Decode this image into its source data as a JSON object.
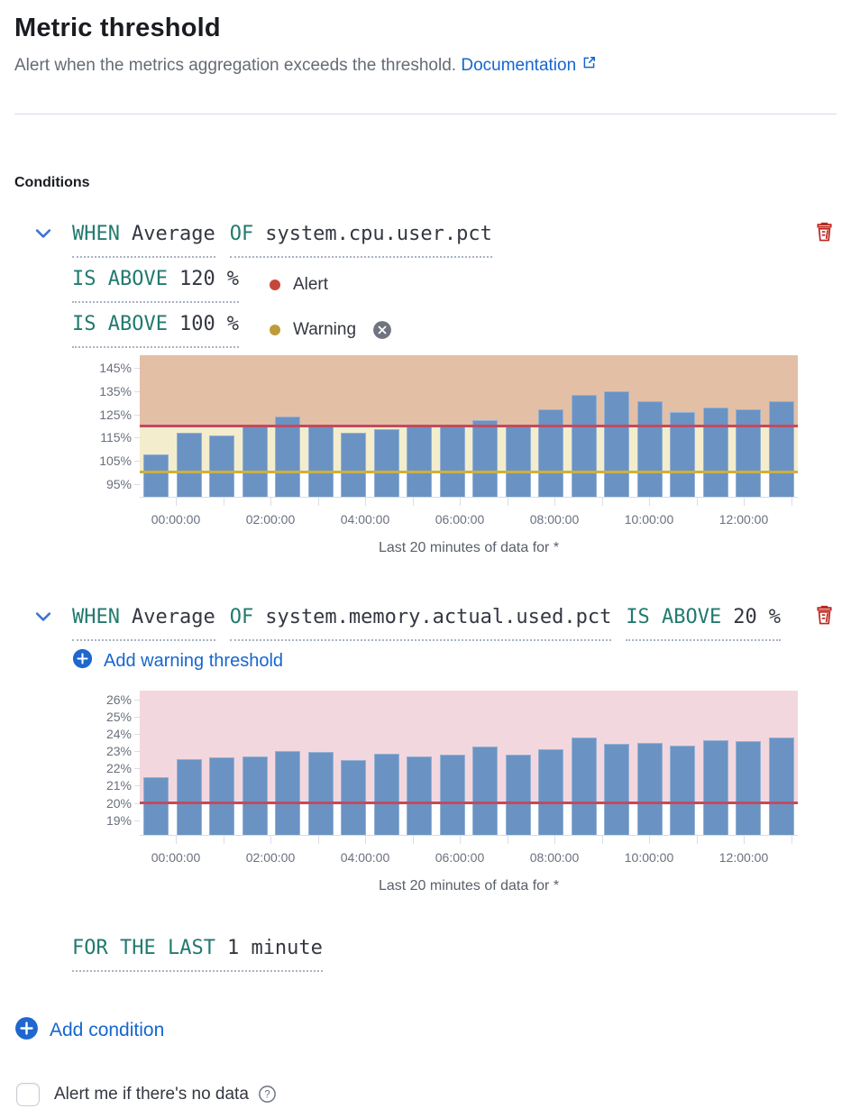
{
  "header": {
    "title": "Metric threshold",
    "subtitle": "Alert when the metrics aggregation exceeds the threshold.",
    "doc_link": "Documentation"
  },
  "conditions": {
    "section_label": "Conditions",
    "condition1": {
      "when_label": "WHEN",
      "aggregation": "Average",
      "of_label": "OF",
      "metric": "system.cpu.user.pct",
      "alert": {
        "op": "IS ABOVE",
        "value": "120",
        "unit": "%",
        "label": "Alert"
      },
      "warning": {
        "op": "IS ABOVE",
        "value": "100",
        "unit": "%",
        "label": "Warning"
      }
    },
    "condition2": {
      "when_label": "WHEN",
      "aggregation": "Average",
      "of_label": "OF",
      "metric": "system.memory.actual.used.pct",
      "alert": {
        "op": "IS ABOVE",
        "value": "20",
        "unit": "%"
      },
      "add_warning_label": "Add warning threshold"
    },
    "for_the_last": {
      "label": "FOR THE LAST",
      "value": "1 minute"
    },
    "add_condition_label": "Add condition"
  },
  "footer": {
    "no_data_label": "Alert me if there's no data"
  },
  "icons": {
    "chevron_down": "⌄",
    "trash": "🗑",
    "plus_in_circle": "＋",
    "cross_in_circle": "✕",
    "external_link": "↗",
    "help": "?"
  },
  "colors": {
    "link_blue": "#1566d0",
    "keyword_teal": "#227a6f",
    "danger_red": "#bd271e",
    "alert_dot": "#c5473c",
    "warning_dot": "#bf9c3b",
    "alert_line": "#c34a5e",
    "warning_line": "#ceb03e",
    "bar_blue": "#6a93c3",
    "alert_zone_tan": "#e3bfa6",
    "warning_zone_cream": "#f3edcd",
    "alert_zone_pink": "#f3d7de"
  },
  "chart_data": [
    {
      "type": "bar",
      "title": "CPU condition preview",
      "xlabel": "Last 20 minutes of data for *",
      "ylabel": "",
      "ylim": [
        89,
        150.5
      ],
      "y_ticks": [
        145,
        135,
        125,
        115,
        105,
        95
      ],
      "y_tick_labels": [
        "145%",
        "135%",
        "125%",
        "115%",
        "105%",
        "95%"
      ],
      "x_tick_labels": [
        "00:00:00",
        "02:00:00",
        "04:00:00",
        "06:00:00",
        "08:00:00",
        "10:00:00",
        "12:00:00"
      ],
      "values": [
        107.5,
        117,
        116,
        120.5,
        124,
        120,
        117,
        118.5,
        120.5,
        120.5,
        122.5,
        120.5,
        127,
        133.5,
        135,
        130.5,
        126,
        128,
        127,
        130.5
      ],
      "bar_color": "#6a93c3",
      "threshold_lines": [
        {
          "name": "Alert",
          "value": 120,
          "color": "#c34a5e"
        },
        {
          "name": "Warning",
          "value": 100,
          "color": "#ceb03e"
        }
      ],
      "zones": [
        {
          "from": 120,
          "to": "top",
          "color": "#e3bfa6"
        },
        {
          "from": 100,
          "to": 120,
          "color": "#f3edcd"
        }
      ]
    },
    {
      "type": "bar",
      "title": "Memory condition preview",
      "xlabel": "Last 20 minutes of data for *",
      "ylabel": "",
      "ylim": [
        18.1,
        26.5
      ],
      "y_ticks": [
        26,
        25,
        24,
        23,
        22,
        21,
        20,
        19
      ],
      "y_tick_labels": [
        "26%",
        "25%",
        "24%",
        "23%",
        "22%",
        "21%",
        "20%",
        "19%"
      ],
      "x_tick_labels": [
        "00:00:00",
        "02:00:00",
        "04:00:00",
        "06:00:00",
        "08:00:00",
        "10:00:00",
        "12:00:00"
      ],
      "values": [
        21.5,
        22.55,
        22.65,
        22.7,
        23.0,
        22.95,
        22.5,
        22.85,
        22.7,
        22.8,
        23.25,
        22.8,
        23.1,
        23.8,
        23.4,
        23.45,
        23.3,
        23.65,
        23.6,
        23.8
      ],
      "bar_color": "#6a93c3",
      "threshold_lines": [
        {
          "name": "Alert",
          "value": 20,
          "color": "#c34a5e"
        }
      ],
      "zones": [
        {
          "from": 20,
          "to": "top",
          "color": "#f3d7de"
        }
      ]
    }
  ]
}
